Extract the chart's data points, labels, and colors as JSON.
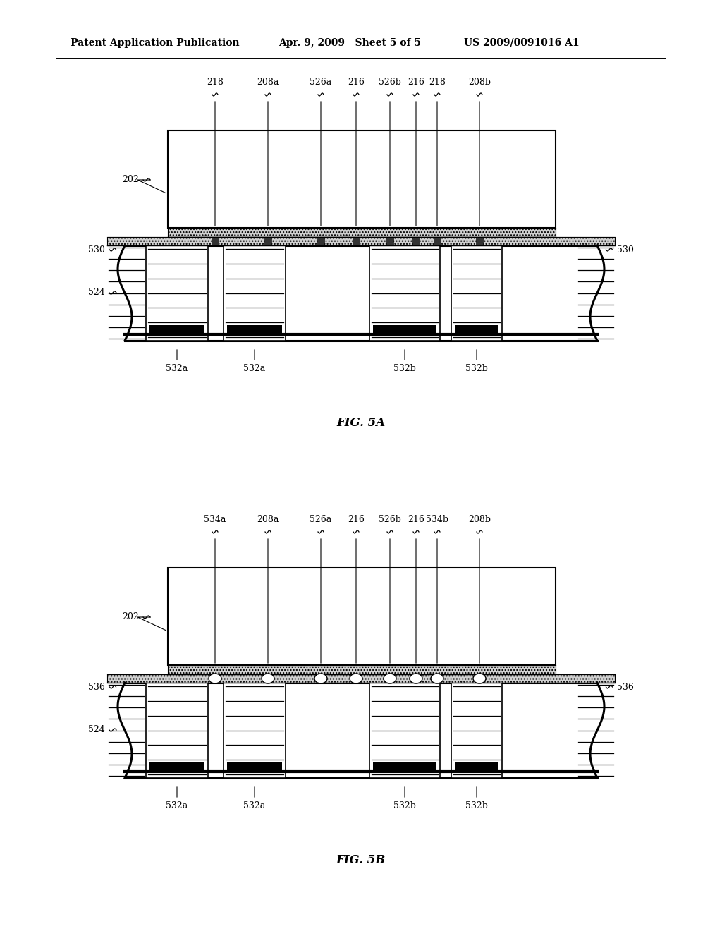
{
  "bg_color": "#ffffff",
  "header_left": "Patent Application Publication",
  "header_mid": "Apr. 9, 2009   Sheet 5 of 5",
  "header_right": "US 2009/0091016 A1",
  "fig5a_label": "FIG. 5A",
  "fig5b_label": "FIG. 5B",
  "label_fontsize": 9,
  "caption_fontsize": 12,
  "header_fontsize": 10
}
